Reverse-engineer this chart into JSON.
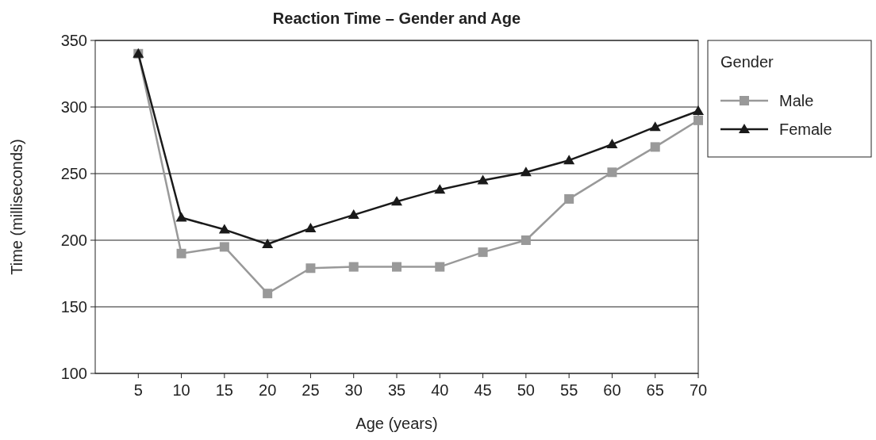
{
  "chart_data": {
    "type": "line",
    "title": "Reaction Time – Gender and Age",
    "xlabel": "Age (years)",
    "ylabel": "Time (milliseconds)",
    "legend_title": "Gender",
    "x": [
      5,
      10,
      15,
      20,
      25,
      30,
      35,
      40,
      45,
      50,
      55,
      60,
      65,
      70
    ],
    "xlim": [
      0,
      70
    ],
    "xticks": [
      5,
      10,
      15,
      20,
      25,
      30,
      35,
      40,
      45,
      50,
      55,
      60,
      65,
      70
    ],
    "ylim": [
      100,
      350
    ],
    "yticks": [
      100,
      150,
      200,
      250,
      300,
      350
    ],
    "grid": "y",
    "legend": "right",
    "series": [
      {
        "name": "Male",
        "color": "#999999",
        "marker": "square",
        "values": [
          340,
          190,
          195,
          160,
          179,
          180,
          180,
          180,
          191,
          200,
          231,
          251,
          270,
          290
        ]
      },
      {
        "name": "Female",
        "color": "#1a1a1a",
        "marker": "triangle",
        "values": [
          340,
          217,
          208,
          197,
          209,
          219,
          229,
          238,
          245,
          251,
          260,
          272,
          285,
          297
        ]
      }
    ]
  }
}
